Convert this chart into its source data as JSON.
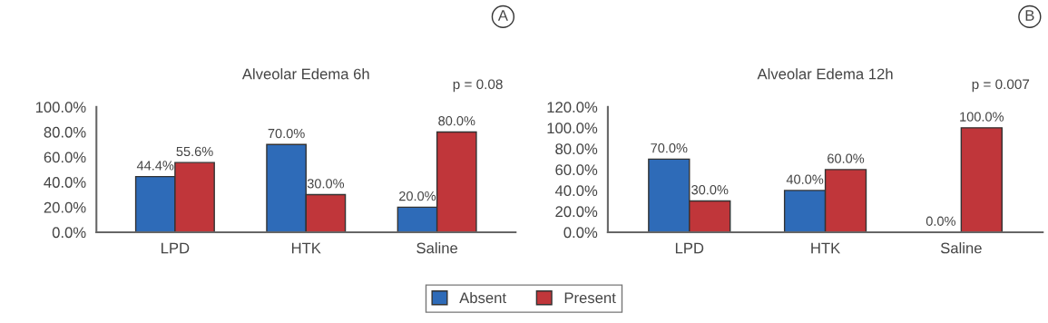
{
  "chart_data": [
    {
      "type": "bar",
      "title": "Alveolar Edema 6h",
      "categories": [
        "LPD",
        "HTK",
        "Saline"
      ],
      "series": [
        {
          "name": "Absent",
          "color": "#2e6bb8",
          "values": [
            44.4,
            70.0,
            20.0
          ],
          "value_labels": [
            "44.4%",
            "70.0%",
            "20.0%"
          ]
        },
        {
          "name": "Present",
          "color": "#c0363a",
          "values": [
            55.6,
            30.0,
            80.0
          ],
          "value_labels": [
            "55.6%",
            "30.0%",
            "80.0%"
          ]
        }
      ],
      "ylim": [
        0,
        100
      ],
      "yticks": [
        {
          "value": 0,
          "label": "0.0%"
        },
        {
          "value": 20,
          "label": "20.0%"
        },
        {
          "value": 40,
          "label": "40.0%"
        },
        {
          "value": 60,
          "label": "60.0%"
        },
        {
          "value": 80,
          "label": "80.0%"
        },
        {
          "value": 100,
          "label": "100.0%"
        }
      ],
      "annotations": [
        "A",
        "p = 0.08"
      ],
      "legend": "bottom",
      "grid": false
    },
    {
      "type": "bar",
      "title": "Alveolar Edema 12h",
      "categories": [
        "LPD",
        "HTK",
        "Saline"
      ],
      "series": [
        {
          "name": "Absent",
          "color": "#2e6bb8",
          "values": [
            70.0,
            40.0,
            0.0
          ],
          "value_labels": [
            "70.0%",
            "40.0%",
            "0.0%"
          ]
        },
        {
          "name": "Present",
          "color": "#c0363a",
          "values": [
            30.0,
            60.0,
            100.0
          ],
          "value_labels": [
            "30.0%",
            "60.0%",
            "100.0%"
          ]
        }
      ],
      "ylim": [
        0,
        120
      ],
      "yticks": [
        {
          "value": 0,
          "label": "0.0%"
        },
        {
          "value": 20,
          "label": "20.0%"
        },
        {
          "value": 40,
          "label": "40.0%"
        },
        {
          "value": 60,
          "label": "60.0%"
        },
        {
          "value": 80,
          "label": "80.0%"
        },
        {
          "value": 100,
          "label": "100.0%"
        },
        {
          "value": 120,
          "label": "120.0%"
        }
      ],
      "annotations": [
        "B",
        "p = 0.007"
      ],
      "legend": "bottom",
      "grid": false
    }
  ]
}
